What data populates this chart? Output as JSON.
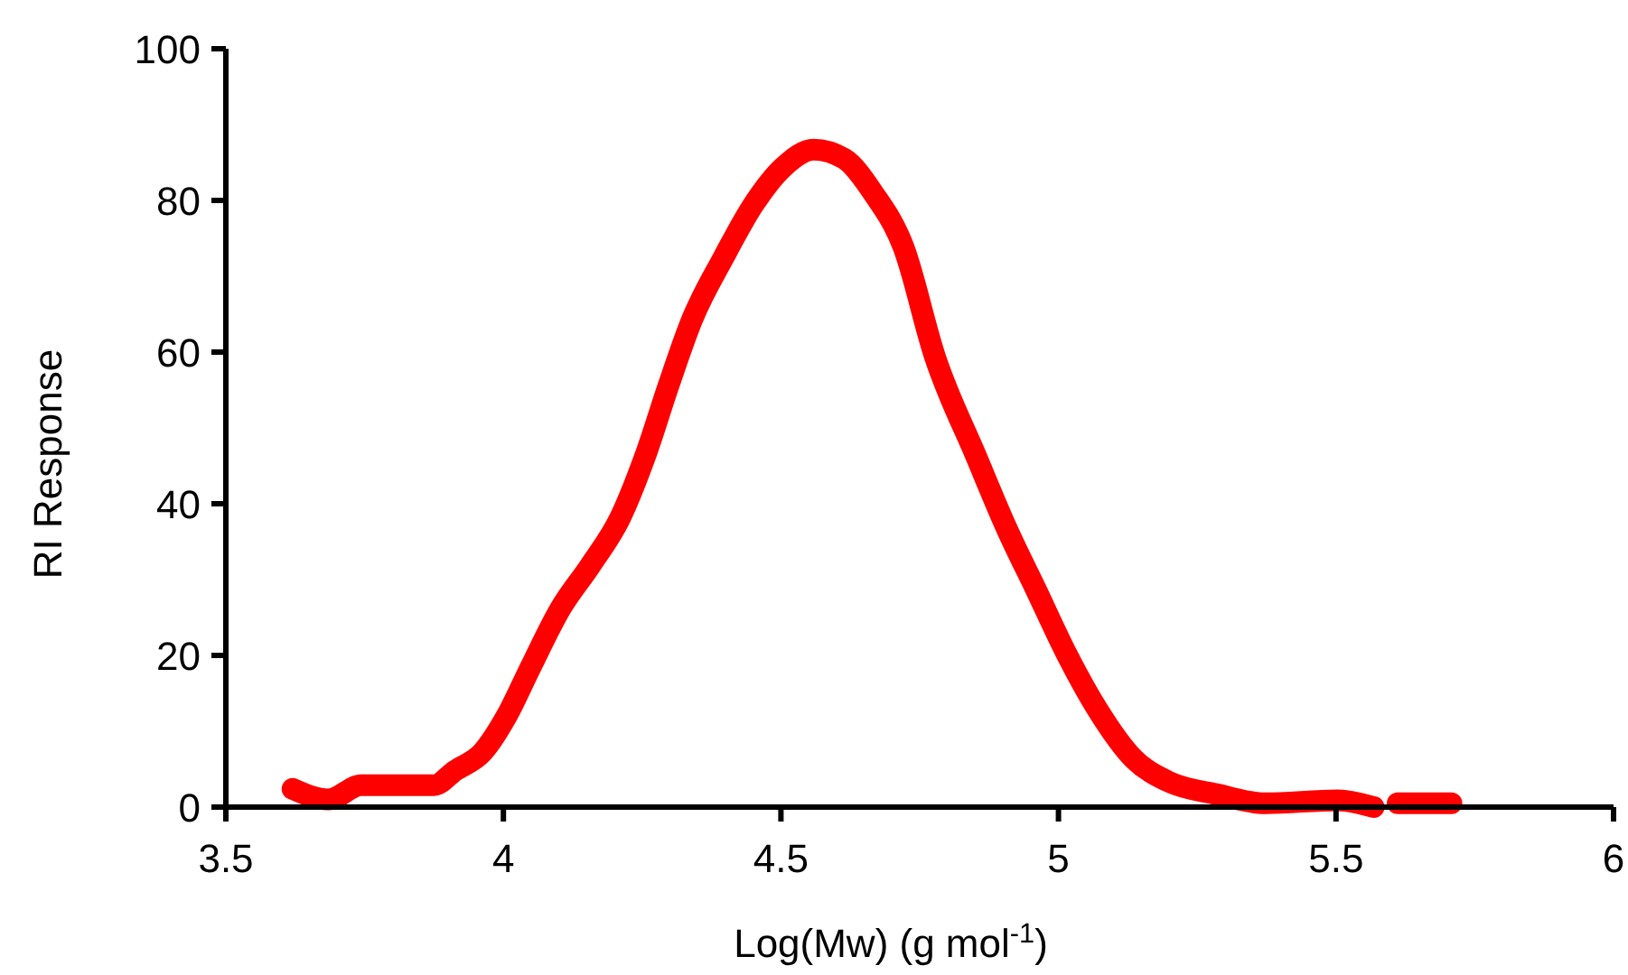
{
  "chart_data": {
    "type": "line",
    "xlabel": "Log(Mw) (g mol$^{-1}$)",
    "ylabel": "RI Response",
    "xlim": [
      3.5,
      6
    ],
    "xticks": [
      3.5,
      4,
      4.5,
      5,
      5.5,
      6
    ],
    "ylim": [
      0,
      100
    ],
    "yticks": [
      0,
      20,
      40,
      60,
      80,
      100
    ],
    "grid": false,
    "line_style": "solid",
    "series": [
      {
        "color": "#ff0000",
        "x": [
          3.62,
          3.685,
          3.744,
          3.875,
          3.913,
          3.962,
          4.005,
          4.048,
          4.103,
          4.157,
          4.21,
          4.255,
          4.298,
          4.34,
          4.396,
          4.451,
          4.503,
          4.559,
          4.614,
          4.666,
          4.721,
          4.777,
          4.852,
          4.907,
          4.96,
          5.016,
          5.07,
          5.135,
          5.2,
          5.285,
          5.373,
          5.503,
          5.568,
          5.59,
          5.611,
          5.708
        ],
        "values": [
          2.4,
          1.0,
          2.9,
          2.9,
          4.8,
          7.2,
          11.9,
          18.3,
          26.2,
          31.9,
          38.1,
          46.2,
          55.7,
          64.3,
          72.4,
          79.5,
          84.3,
          86.7,
          85.5,
          81,
          73.8,
          59.5,
          46.2,
          36.7,
          28.6,
          20,
          12.9,
          6.4,
          3.3,
          1.7,
          0.5,
          0.9,
          0,
          null,
          0.5,
          0.5
        ]
      }
    ]
  }
}
